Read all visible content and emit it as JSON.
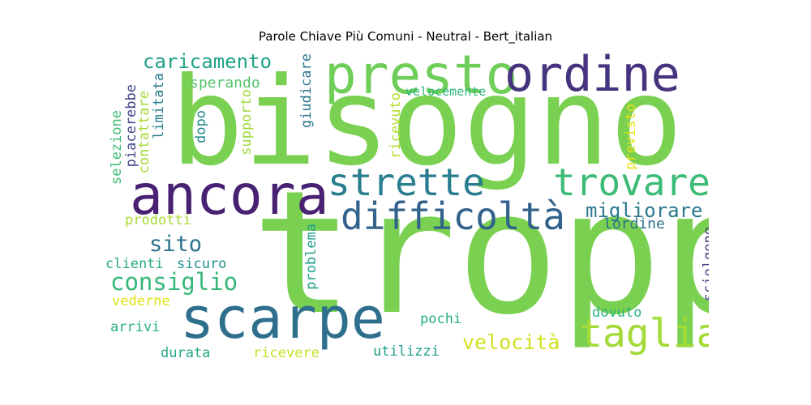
{
  "title": "Parole Chiave Più Comuni - Neutral - Bert_italian",
  "words": [
    {
      "text": "troppo",
      "color": "#7ad151"
    },
    {
      "text": "bisogno",
      "color": "#7ad151"
    },
    {
      "text": "ancora",
      "color": "#482173"
    },
    {
      "text": "scarpe",
      "color": "#2e6f8e"
    },
    {
      "text": "presto",
      "color": "#6ece58"
    },
    {
      "text": "ordine",
      "color": "#46337e"
    },
    {
      "text": "trovare",
      "color": "#3bbb75"
    },
    {
      "text": "strette",
      "color": "#287d8e"
    },
    {
      "text": "difficoltà",
      "color": "#33638d"
    },
    {
      "text": "taglia",
      "color": "#a2da37"
    },
    {
      "text": "consiglio",
      "color": "#35b779"
    },
    {
      "text": "caricamento",
      "color": "#1fa187"
    },
    {
      "text": "velocità",
      "color": "#d0e11c"
    },
    {
      "text": "migliorare",
      "color": "#2a788e"
    },
    {
      "text": "sito",
      "color": "#2c728e"
    },
    {
      "text": "sperando",
      "color": "#52c569"
    },
    {
      "text": "lordine",
      "color": "#2c718e"
    },
    {
      "text": "prodotti",
      "color": "#a8db34"
    },
    {
      "text": "clienti",
      "color": "#23a983"
    },
    {
      "text": "sicuro",
      "color": "#21918c"
    },
    {
      "text": "vederne",
      "color": "#dde318"
    },
    {
      "text": "arrivi",
      "color": "#2ab07f"
    },
    {
      "text": "pochi",
      "color": "#29af7f"
    },
    {
      "text": "dovuto",
      "color": "#2db27d"
    },
    {
      "text": "durata",
      "color": "#22a785"
    },
    {
      "text": "ricevere",
      "color": "#c8e020"
    },
    {
      "text": "utilizzi",
      "color": "#1f9e89"
    },
    {
      "text": "velocemente",
      "color": "#2fb47c"
    },
    {
      "text": "accessori",
      "color": "#355f8d"
    },
    {
      "text": "sciolgono",
      "color": "#433e85"
    },
    {
      "text": "selezione",
      "color": "#3fbc73"
    },
    {
      "text": "piacerebbe",
      "color": "#404588"
    },
    {
      "text": "contattare",
      "color": "#a5db36"
    },
    {
      "text": "limitata",
      "color": "#297a8e"
    },
    {
      "text": "dopo",
      "color": "#238a8d"
    },
    {
      "text": "supporto",
      "color": "#9dd93b"
    },
    {
      "text": "giudicare",
      "color": "#2a768e"
    },
    {
      "text": "ricevuto",
      "color": "#b5de2b"
    },
    {
      "text": "problema",
      "color": "#1fa088"
    },
    {
      "text": "previsto",
      "color": "#e7e419"
    }
  ]
}
